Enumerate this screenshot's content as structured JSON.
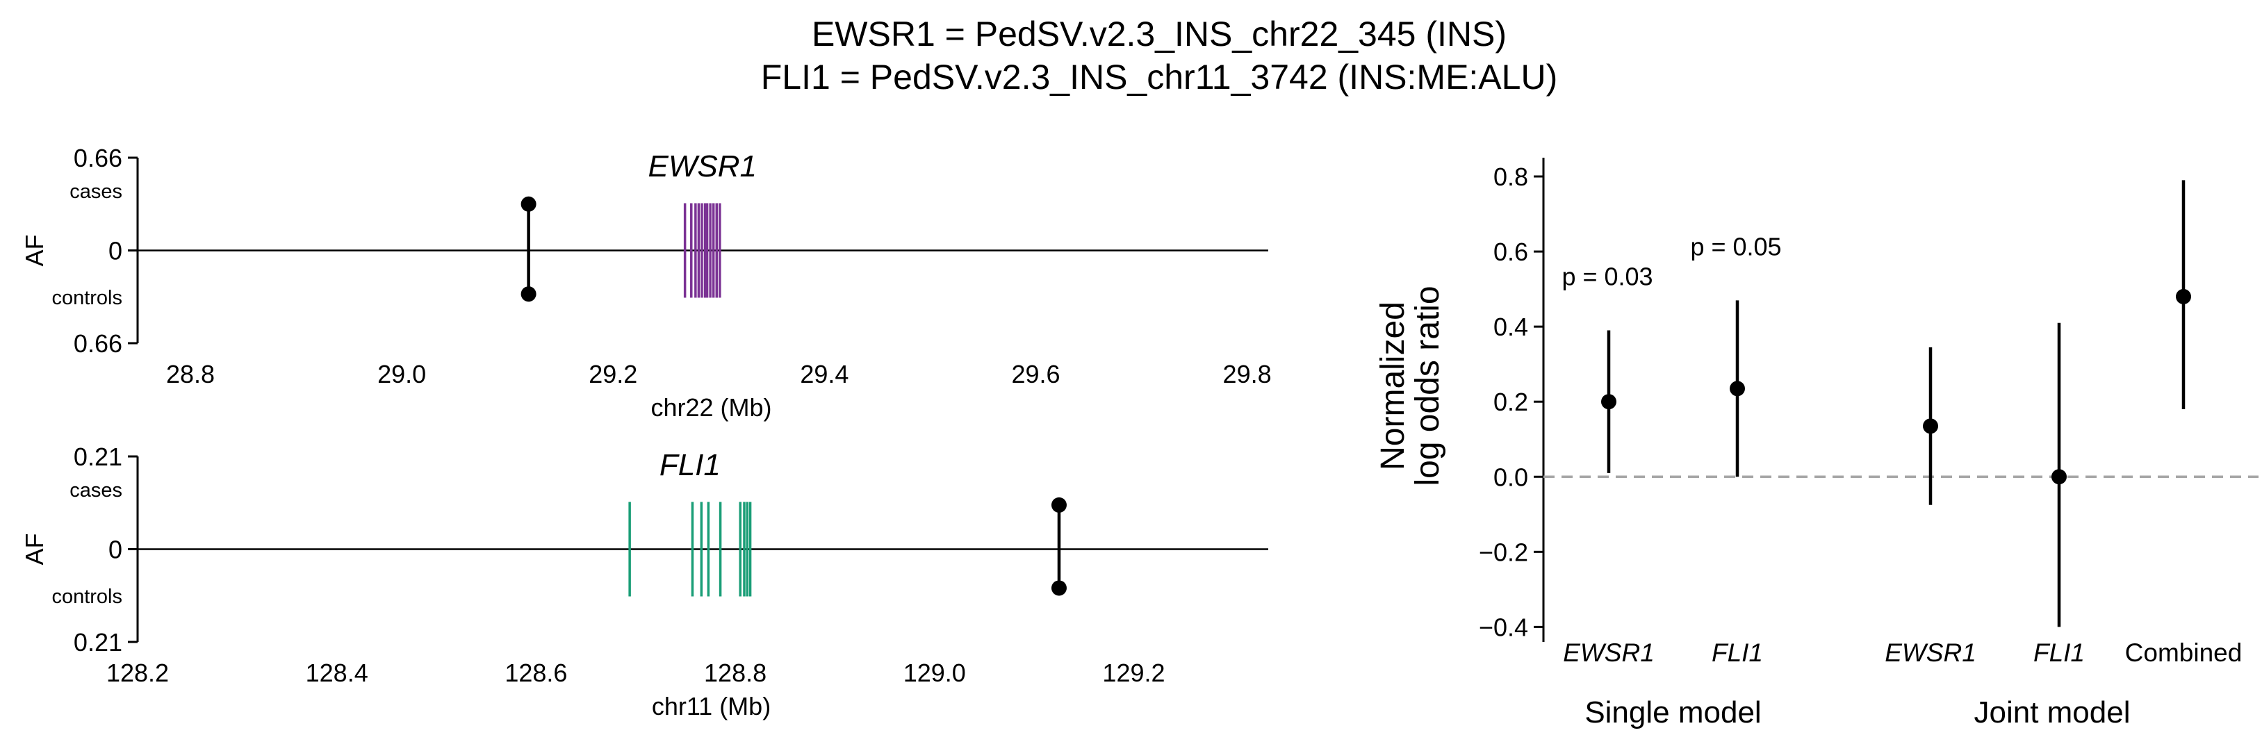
{
  "title": {
    "line1": "EWSR1 = PedSV.v2.3_INS_chr22_345 (INS)",
    "line2": "FLI1 = PedSV.v2.3_INS_chr11_3742 (INS:ME:ALU)"
  },
  "chart_data": [
    {
      "type": "scatter",
      "panel": "locus-top",
      "gene_label": "EWSR1",
      "xlabel": "chr22 (Mb)",
      "ylabel": "AF",
      "y_top_label": "cases",
      "y_bottom_label": "controls",
      "y_tick_labels": [
        "0.66",
        "0",
        "0.66"
      ],
      "ylim": [
        -0.66,
        0.66
      ],
      "xlim": [
        28.75,
        29.82
      ],
      "x_ticks": [
        28.8,
        29.0,
        29.2,
        29.4,
        29.6,
        29.8
      ],
      "x_tick_labels": [
        "28.8",
        "29.0",
        "29.2",
        "29.4",
        "29.6",
        "29.8"
      ],
      "gene_color": "#7b3294",
      "exons": [
        29.268,
        29.274,
        29.278,
        29.281,
        29.284,
        29.287,
        29.289,
        29.292,
        29.295,
        29.298,
        29.301
      ],
      "variant": {
        "position": 29.12,
        "af_cases": 0.33,
        "af_controls": 0.31
      }
    },
    {
      "type": "scatter",
      "panel": "locus-bottom",
      "gene_label": "FLI1",
      "xlabel": "chr11 (Mb)",
      "ylabel": "AF",
      "y_top_label": "cases",
      "y_bottom_label": "controls",
      "y_tick_labels": [
        "0.21",
        "0",
        "0.21"
      ],
      "ylim": [
        -0.21,
        0.21
      ],
      "xlim": [
        128.2,
        129.335
      ],
      "x_ticks": [
        128.2,
        128.4,
        128.6,
        128.8,
        129.0,
        129.2
      ],
      "x_tick_labels": [
        "128.2",
        "128.4",
        "128.6",
        "128.8",
        "129.0",
        "129.2"
      ],
      "gene_color": "#1a9e77",
      "exons": [
        128.694,
        128.757,
        128.766,
        128.773,
        128.785,
        128.805,
        128.809,
        128.812,
        128.815
      ],
      "variant": {
        "position": 129.125,
        "af_cases": 0.1,
        "af_controls": 0.088
      }
    },
    {
      "type": "scatter",
      "panel": "odds-ratio",
      "ylabel_line1": "Normalized",
      "ylabel_line2": "log odds ratio",
      "ylim": [
        -0.44,
        0.85
      ],
      "y_ticks": [
        -0.4,
        -0.2,
        0.0,
        0.2,
        0.4,
        0.6,
        0.8
      ],
      "y_tick_labels": [
        "−0.4",
        "−0.2",
        "0.0",
        "0.2",
        "0.4",
        "0.6",
        "0.8"
      ],
      "reference_line": 0.0,
      "categories": [
        "EWSR1",
        "FLI1",
        "EWSR1",
        "FLI1",
        "Combined"
      ],
      "groups": [
        "Single model",
        "Joint model"
      ],
      "points": [
        {
          "label": "EWSR1",
          "group": "Single model",
          "estimate": 0.2,
          "lower": 0.01,
          "upper": 0.39,
          "p_label": "p = 0.03"
        },
        {
          "label": "FLI1",
          "group": "Single model",
          "estimate": 0.235,
          "lower": 0.0,
          "upper": 0.47,
          "p_label": "p = 0.05"
        },
        {
          "label": "EWSR1",
          "group": "Joint model",
          "estimate": 0.135,
          "lower": -0.075,
          "upper": 0.345,
          "p_label": ""
        },
        {
          "label": "FLI1",
          "group": "Joint model",
          "estimate": 0.0,
          "lower": -0.4,
          "upper": 0.41,
          "p_label": ""
        },
        {
          "label": "Combined",
          "group": "Joint model",
          "estimate": 0.48,
          "lower": 0.18,
          "upper": 0.79,
          "p_label": ""
        }
      ]
    }
  ]
}
